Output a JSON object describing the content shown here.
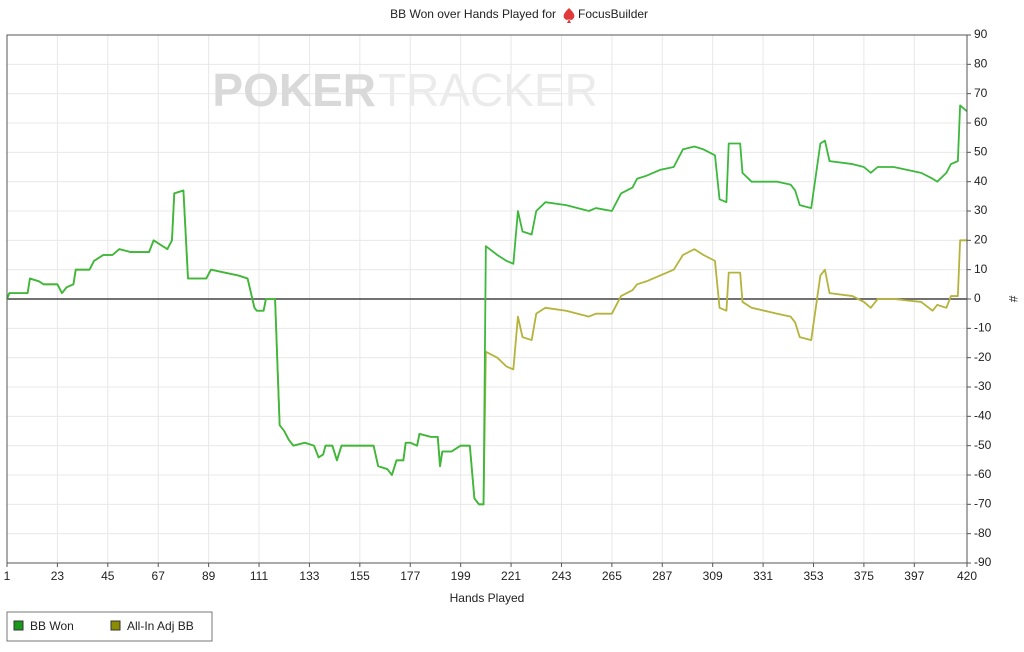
{
  "chart_data": {
    "type": "line",
    "title": "BB Won over Hands Played for",
    "player": "FocusBuilder",
    "watermark": [
      "POKER",
      "TRACKER"
    ],
    "x_label": "Hands Played",
    "y_label": "#",
    "x": [
      1,
      2,
      5,
      10,
      11,
      15,
      17,
      23,
      25,
      27,
      30,
      31,
      37,
      39,
      43,
      47,
      50,
      55,
      63,
      65,
      69,
      71,
      73,
      74,
      78,
      80,
      88,
      90,
      96,
      102,
      106,
      109,
      110,
      113,
      114,
      118,
      120,
      122,
      124,
      126,
      131,
      135,
      137,
      139,
      140,
      143,
      145,
      147,
      161,
      163,
      167,
      169,
      171,
      174,
      175,
      177,
      180,
      181,
      186,
      189,
      190,
      191,
      195,
      199,
      203,
      205,
      207,
      209,
      210,
      215,
      219,
      222,
      224,
      226,
      230,
      232,
      236,
      245,
      255,
      258,
      265,
      269,
      274,
      276,
      280,
      286,
      292,
      296,
      301,
      305,
      310,
      312,
      315,
      316,
      321,
      322,
      326,
      337,
      343,
      345,
      347,
      352,
      356,
      358,
      360,
      370,
      375,
      378,
      381,
      388,
      400,
      405,
      407,
      411,
      413,
      416,
      417,
      420
    ],
    "series": [
      {
        "name": "BB Won",
        "color": "#3cb83c",
        "legend_color": "#1a9a1a",
        "values": [
          0,
          2,
          2,
          2,
          7,
          6,
          5,
          5,
          2,
          4,
          5,
          10,
          10,
          13,
          15,
          15,
          17,
          16,
          16,
          20,
          18,
          17,
          20,
          36,
          37,
          7,
          7,
          10,
          9,
          8,
          7,
          -3,
          -4,
          -4,
          0,
          0,
          -43,
          -45,
          -48,
          -50,
          -49,
          -50,
          -54,
          -53,
          -50,
          -50,
          -55,
          -50,
          -50,
          -57,
          -58,
          -60,
          -55,
          -55,
          -49,
          -49,
          -50,
          -46,
          -47,
          -47,
          -57,
          -52,
          -52,
          -50,
          -50,
          -68,
          -70,
          -70,
          18,
          15,
          13,
          12,
          30,
          23,
          22,
          30,
          33,
          32,
          30,
          31,
          30,
          36,
          38,
          41,
          42,
          44,
          45,
          51,
          52,
          51,
          49,
          34,
          33,
          53,
          53,
          43,
          40,
          40,
          39,
          37,
          32,
          31,
          53,
          54,
          47,
          46,
          45,
          43,
          45,
          45,
          43,
          41,
          40,
          43,
          46,
          47,
          66,
          64
        ]
      },
      {
        "name": "All-In Adj BB",
        "color": "#b4b43c",
        "legend_color": "#8c8c00",
        "values": [
          0,
          2,
          2,
          2,
          7,
          6,
          5,
          5,
          2,
          4,
          5,
          10,
          10,
          13,
          15,
          15,
          17,
          16,
          16,
          20,
          18,
          17,
          20,
          36,
          37,
          7,
          7,
          10,
          9,
          8,
          7,
          -3,
          -4,
          -4,
          0,
          0,
          -43,
          -45,
          -48,
          -50,
          -49,
          -50,
          -54,
          -53,
          -50,
          -50,
          -55,
          -50,
          -50,
          -57,
          -58,
          -60,
          -55,
          -55,
          -49,
          -49,
          -50,
          -46,
          -47,
          -47,
          -57,
          -52,
          -52,
          -50,
          -50,
          -68,
          -70,
          -70,
          -18,
          -20,
          -23,
          -24,
          -6,
          -13,
          -14,
          -5,
          -3,
          -4,
          -6,
          -5,
          -5,
          1,
          3,
          5,
          6,
          8,
          10,
          15,
          17,
          15,
          13,
          -3,
          -4,
          9,
          9,
          -1,
          -3,
          -5,
          -6,
          -8,
          -13,
          -14,
          8,
          10,
          2,
          1,
          -1,
          -3,
          0,
          0,
          -1,
          -4,
          -2,
          -3,
          1,
          1,
          20,
          20
        ]
      }
    ],
    "xlim": [
      1,
      420
    ],
    "xticks": [
      1,
      23,
      45,
      67,
      89,
      111,
      133,
      155,
      177,
      199,
      221,
      243,
      265,
      287,
      309,
      331,
      353,
      375,
      397,
      420
    ],
    "ylim": [
      -90,
      90
    ],
    "yticks": [
      -90,
      -80,
      -70,
      -60,
      -50,
      -40,
      -30,
      -20,
      -10,
      0,
      10,
      20,
      30,
      40,
      50,
      60,
      70,
      80,
      90
    ],
    "grid": true
  }
}
